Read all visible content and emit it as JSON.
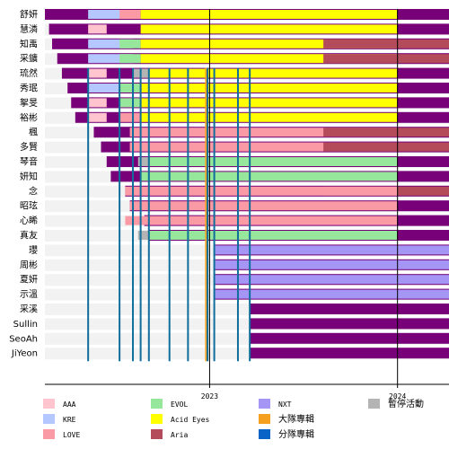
{
  "chart_data": {
    "type": "gantt-timeline",
    "x_axis": {
      "range": [
        "2022-02-15",
        "2024-04-10"
      ],
      "ticks": [
        "2023",
        "2024"
      ]
    },
    "colors": {
      "member": "#780078",
      "background": "#f2f2f2",
      "AAA": "#ffc4cd",
      "KRE": "#b4c8ff",
      "LOVE": "#fa9aa5",
      "EVOL": "#96e69b",
      "Acid Eyes": "#ffff00",
      "Aria": "#b44b5a",
      "NXT": "#a596f5",
      "大隊專輯": "#f5a01e",
      "分隊專輯": "#0a64c8",
      "暫停活動": "#b4b4b4",
      "release_line": "#0f6e9b",
      "year_line": "#000000"
    },
    "members": [
      {
        "name": "舒妍",
        "start": "2022-02-15",
        "end": null
      },
      {
        "name": "慧潾",
        "start": "2022-02-23",
        "end": null
      },
      {
        "name": "知禹",
        "start": "2022-03-01",
        "end": null
      },
      {
        "name": "采鑛",
        "start": "2022-03-11",
        "end": null
      },
      {
        "name": "琉然",
        "start": "2022-03-20",
        "end": null
      },
      {
        "name": "秀珉",
        "start": "2022-03-31",
        "end": null
      },
      {
        "name": "挐旻",
        "start": "2022-04-07",
        "end": null
      },
      {
        "name": "裕彬",
        "start": "2022-04-15",
        "end": null
      },
      {
        "name": "楓",
        "start": "2022-05-21",
        "end": null
      },
      {
        "name": "多賢",
        "start": "2022-06-04",
        "end": null
      },
      {
        "name": "琴音",
        "start": "2022-06-15",
        "end": null
      },
      {
        "name": "妍知",
        "start": "2022-06-23",
        "end": null
      },
      {
        "name": "念",
        "start": "2022-07-21",
        "end": null
      },
      {
        "name": "昭玹",
        "start": "2022-07-30",
        "end": null
      },
      {
        "name": "心睎",
        "start": "2022-08-27",
        "end": null
      },
      {
        "name": "真友",
        "start": "2022-09-04",
        "end": null
      },
      {
        "name": "瓔",
        "start": "2023-01-10",
        "end": null
      },
      {
        "name": "周彬",
        "start": "2023-01-10",
        "end": null
      },
      {
        "name": "夏妍",
        "start": "2023-01-10",
        "end": null
      },
      {
        "name": "示溫",
        "start": "2023-01-10",
        "end": null
      },
      {
        "name": "采溪",
        "start": "2023-03-20",
        "end": null
      },
      {
        "name": "Sullin",
        "start": "2023-03-20",
        "end": null
      },
      {
        "name": "SeoAh",
        "start": "2023-03-20",
        "end": null
      },
      {
        "name": "JiYeon",
        "start": "2023-03-20",
        "end": null
      }
    ],
    "units": [
      {
        "legend": "AAA",
        "members": [
          "慧潾",
          "琉然",
          "挐旻",
          "裕彬"
        ],
        "start": "2022-05-10",
        "end": "2022-06-15"
      },
      {
        "legend": "KRE",
        "members": [
          "舒妍",
          "知禹",
          "采鑛",
          "秀珉"
        ],
        "start": "2022-05-10",
        "end": "2022-08-05"
      },
      {
        "legend": "LOVE",
        "members": [
          "舒妍",
          "挐旻",
          "裕彬"
        ],
        "start": "2022-07-10",
        "end": "2022-08-20"
      },
      {
        "legend": "EVOL",
        "members": [
          "知禹",
          "采鑛",
          "秀珉",
          "挐旻"
        ],
        "start": "2022-07-10",
        "end": "2022-08-20"
      },
      {
        "legend": "Acid Eyes",
        "members": [
          "舒妍",
          "慧潾",
          "知禹",
          "采鑛",
          "琉然",
          "秀珉",
          "挐旻",
          "裕彬"
        ],
        "start": "2022-08-20",
        "end": "2023-12-31"
      },
      {
        "legend": "LOVE",
        "members": [
          "楓",
          "多賢",
          "昭玹"
        ],
        "start": "2022-07-30",
        "end": "2023-12-31"
      },
      {
        "legend": "Aria",
        "members": [
          "知禹",
          "采鑛",
          "楓",
          "多賢",
          "念"
        ],
        "start": "2023-08-10",
        "end": "2024-04-10"
      },
      {
        "legend": "EVOL",
        "members": [
          "琴音",
          "妍知",
          "真友"
        ],
        "start": "2022-08-20",
        "end": "2023-12-31"
      },
      {
        "legend": "暫停活動",
        "members": [
          "琉然"
        ],
        "start": "2022-08-05",
        "end": "2022-09-05"
      },
      {
        "legend": "暫停活動",
        "members": [
          "琴音",
          "真友"
        ],
        "start": "2022-08-15",
        "end": "2022-09-05"
      },
      {
        "legend": "LOVE",
        "members": [
          "念",
          "心睎"
        ],
        "start": "2022-07-21",
        "end": "2023-12-31"
      },
      {
        "legend": "NXT",
        "members": [
          "瓔",
          "周彬",
          "夏妍",
          "示溫"
        ],
        "start": "2023-01-10",
        "end": "2024-04-10"
      }
    ],
    "release_lines": [
      {
        "legend": "分隊專輯",
        "date": "2022-05-10",
        "color_key": "release_line"
      },
      {
        "legend": "大隊專輯",
        "date": "2022-12-25",
        "color_key": "大隊專輯"
      },
      {
        "legend": "分隊專輯",
        "date": "2022-07-10",
        "color_key": "release_line"
      },
      {
        "legend": "分隊專輯",
        "date": "2022-08-05",
        "color_key": "release_line"
      },
      {
        "legend": "分隊專輯",
        "date": "2022-08-20",
        "color_key": "release_line"
      },
      {
        "legend": "分隊專輯",
        "date": "2022-09-05",
        "color_key": "release_line"
      },
      {
        "legend": "分隊專輯",
        "date": "2022-10-15",
        "color_key": "release_line"
      },
      {
        "legend": "分隊專輯",
        "date": "2022-11-20",
        "color_key": "release_line"
      },
      {
        "legend": "分隊專輯",
        "date": "2022-12-28",
        "color_key": "release_line"
      },
      {
        "legend": "分隊專輯",
        "date": "2023-01-10",
        "color_key": "release_line"
      },
      {
        "legend": "分隊專輯",
        "date": "2023-02-25",
        "color_key": "release_line"
      },
      {
        "legend": "分隊專輯",
        "date": "2023-03-20",
        "color_key": "release_line"
      }
    ],
    "legend": [
      {
        "label": "AAA",
        "color_key": "AAA"
      },
      {
        "label": "EVOL",
        "color_key": "EVOL"
      },
      {
        "label": "NXT",
        "color_key": "NXT"
      },
      {
        "label": "暫停活動",
        "color_key": "暫停活動"
      },
      {
        "label": "KRE",
        "color_key": "KRE"
      },
      {
        "label": "Acid Eyes",
        "color_key": "Acid Eyes"
      },
      {
        "label": "大隊專輯",
        "color_key": "大隊專輯"
      },
      {
        "label": "LOVE",
        "color_key": "LOVE"
      },
      {
        "label": "Aria",
        "color_key": "Aria"
      },
      {
        "label": "分隊專輯",
        "color_key": "分隊專輯"
      }
    ]
  }
}
